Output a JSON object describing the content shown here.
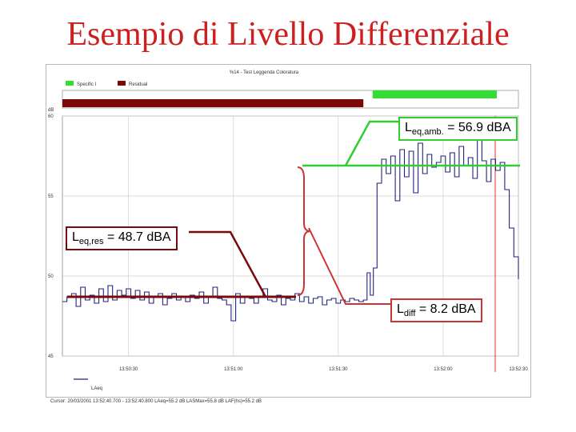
{
  "slide": {
    "title": "Esempio di Livello Differenziale"
  },
  "chart_data": {
    "type": "line",
    "title": "%14 - Test Leggenda Coloratura",
    "legend": [
      {
        "name": "Specific I",
        "color": "#33dd33"
      },
      {
        "name": "Residual",
        "color": "#7a0a0a"
      }
    ],
    "ylabel": "dB",
    "ylim": [
      45,
      60
    ],
    "yticks": [
      45,
      50,
      55,
      60
    ],
    "xlim": [
      0,
      100
    ],
    "xticks": [
      {
        "pos": 14.5,
        "label": "13:50:30"
      },
      {
        "pos": 37.5,
        "label": "13:51:00"
      },
      {
        "pos": 60.5,
        "label": "13:51:30"
      },
      {
        "pos": 83.5,
        "label": "13:52:00"
      },
      {
        "pos": 100,
        "label": "13:52:30"
      }
    ],
    "series_name": "LAeq",
    "footer": "Cursor: 20/03/2001 13:52:40.700 - 13:52:40.800 LAeq=55.2 dB LASMax=55.8 dB LAF(hs)=55.2 dB",
    "periods": {
      "residual": [
        0,
        66
      ],
      "specific": [
        67.5,
        100
      ]
    },
    "series": [
      {
        "name": "LAeq",
        "color": "#23237d",
        "x": [
          0,
          1,
          2,
          3,
          4,
          5,
          6,
          7,
          8,
          9,
          10,
          11,
          12,
          13,
          14,
          15,
          16,
          17,
          18,
          19,
          20,
          21,
          22,
          23,
          24,
          25,
          26,
          27,
          28,
          29,
          30,
          31,
          32,
          33,
          34,
          35,
          36,
          37,
          38,
          39,
          40,
          41,
          42,
          43,
          44,
          45,
          46,
          47,
          48,
          49,
          50,
          51,
          52,
          53,
          54,
          55,
          56,
          57,
          58,
          59,
          60,
          61,
          62,
          63,
          64,
          65,
          66,
          66.8,
          67.5,
          68.2,
          69,
          70,
          71,
          72,
          73,
          74,
          75,
          76,
          77,
          78,
          79,
          80,
          81,
          82,
          83,
          84,
          85,
          86,
          87,
          88,
          89,
          90,
          91,
          92,
          93,
          94,
          95,
          96,
          97,
          98,
          99,
          100
        ],
        "values": [
          48.4,
          48.7,
          48.9,
          48.1,
          49.3,
          48.5,
          48.8,
          48.3,
          49.2,
          48.4,
          49.4,
          48.5,
          49.1,
          48.8,
          49.2,
          48.6,
          49.1,
          48.5,
          49.0,
          48.3,
          48.7,
          48.9,
          48.2,
          48.6,
          48.9,
          48.5,
          48.7,
          48.4,
          48.8,
          48.6,
          49.0,
          48.3,
          48.7,
          49.3,
          48.6,
          48.5,
          48.2,
          47.2,
          48.9,
          48.3,
          48.7,
          48.6,
          48.3,
          48.7,
          49.2,
          48.5,
          48.4,
          48.8,
          48.2,
          48.6,
          48.5,
          48.9,
          48.4,
          48.7,
          48.3,
          48.6,
          48.7,
          48.2,
          48.5,
          48.6,
          48.3,
          48.5,
          48.4,
          48.6,
          48.5,
          48.4,
          48.5,
          50.2,
          48.8,
          50.5,
          55.8,
          57.3,
          56.4,
          57.5,
          54.7,
          57.9,
          56.2,
          57.8,
          55.2,
          58.3,
          56.4,
          57.6,
          56.8,
          57.1,
          57.5,
          56.5,
          57.7,
          56.2,
          58.1,
          56.9,
          57.4,
          56.1,
          58.5,
          57.2,
          55.9,
          57.3,
          56.6,
          57.1,
          55.4,
          53.0,
          51.2,
          49.8
        ]
      }
    ],
    "annotations": [
      {
        "kind": "level",
        "label_main": "Leq,amb.",
        "label_rest": "= 56.9 dBA",
        "value": 56.9,
        "color": "#33cc33"
      },
      {
        "kind": "level",
        "label_main": "Leq,res",
        "label_rest": "= 48.7 dBA",
        "value": 48.7,
        "color": "#7a0a0a"
      },
      {
        "kind": "diff",
        "label_main": "Ldiff",
        "label_rest": "= 8.2 dBA",
        "value": 8.2,
        "color": "#cc3333"
      }
    ]
  }
}
